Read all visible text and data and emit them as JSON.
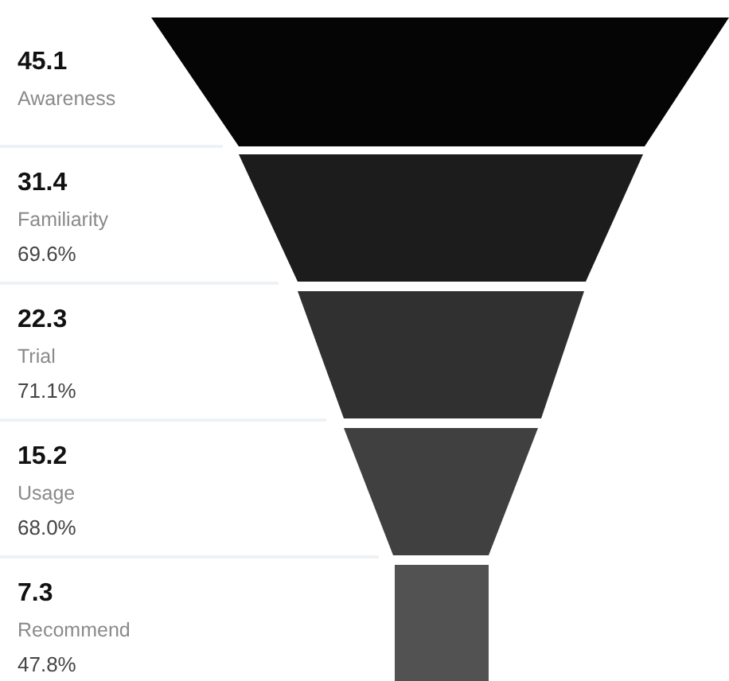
{
  "chart_data": {
    "type": "other",
    "categories": [
      "Awareness",
      "Familiarity",
      "Trial",
      "Usage",
      "Recommend"
    ],
    "values": [
      45.1,
      31.4,
      22.3,
      15.2,
      7.3
    ],
    "colors": [
      "#050505",
      "#1c1c1c",
      "#2f302f",
      "#404040",
      "#525252"
    ],
    "data_labels": true,
    "annotations": [
      "69.6%",
      "71.1%",
      "68.0%",
      "47.8%"
    ]
  }
}
